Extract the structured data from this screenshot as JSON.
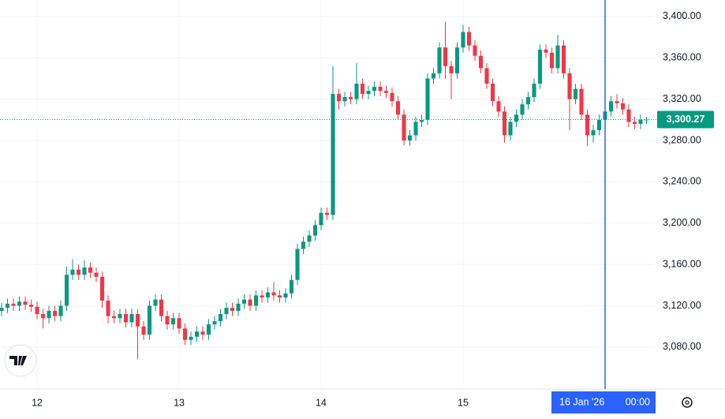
{
  "chart_data": {
    "type": "candlestick",
    "x": [
      -6,
      -5,
      -4,
      -3,
      -2,
      -1,
      0,
      1,
      2,
      3,
      4,
      5,
      6,
      7,
      8,
      9,
      10,
      11,
      12,
      13,
      14,
      15,
      16,
      17,
      18,
      19,
      20,
      21,
      22,
      23,
      24,
      25,
      26,
      27,
      28,
      29,
      30,
      31,
      32,
      33,
      34,
      35,
      36,
      37,
      38,
      39,
      40,
      41,
      42,
      43,
      44,
      45,
      46,
      47,
      48,
      49,
      50,
      51,
      52,
      53,
      54,
      55,
      56,
      57,
      58,
      59,
      60,
      61,
      62,
      63,
      64,
      65,
      66,
      67,
      68,
      69,
      70,
      71,
      72,
      73,
      74,
      75,
      76,
      77,
      78,
      79,
      80,
      81,
      82,
      83,
      84,
      85,
      86,
      87,
      88,
      89,
      90,
      91,
      92,
      93,
      94,
      95,
      96,
      97,
      98,
      99,
      100,
      101,
      102,
      103
    ],
    "open": [
      3115,
      3118,
      3122,
      3120,
      3124,
      3121,
      3119,
      3112,
      3108,
      3115,
      3110,
      3120,
      3150,
      3155,
      3150,
      3157,
      3152,
      3148,
      3125,
      3110,
      3108,
      3112,
      3104,
      3112,
      3100,
      3092,
      3120,
      3126,
      3110,
      3102,
      3108,
      3098,
      3087,
      3090,
      3095,
      3092,
      3102,
      3105,
      3112,
      3118,
      3115,
      3122,
      3126,
      3120,
      3130,
      3128,
      3133,
      3130,
      3128,
      3132,
      3145,
      3175,
      3182,
      3188,
      3198,
      3210,
      3208,
      3325,
      3318,
      3322,
      3320,
      3335,
      3325,
      3328,
      3332,
      3328,
      3326,
      3318,
      3305,
      3280,
      3285,
      3298,
      3300,
      3340,
      3345,
      3370,
      3352,
      3345,
      3370,
      3385,
      3372,
      3362,
      3350,
      3335,
      3318,
      3308,
      3285,
      3298,
      3305,
      3315,
      3322,
      3335,
      3368,
      3365,
      3350,
      3372,
      3345,
      3320,
      3330,
      3305,
      3285,
      3290,
      3300,
      3308,
      3318,
      3316,
      3310,
      3298,
      3296,
      3300
    ],
    "high": [
      3123,
      3127,
      3127,
      3129,
      3129,
      3126,
      3124,
      3117,
      3120,
      3120,
      3125,
      3158,
      3165,
      3160,
      3164,
      3162,
      3157,
      3153,
      3130,
      3115,
      3117,
      3117,
      3117,
      3117,
      3105,
      3125,
      3131,
      3131,
      3115,
      3113,
      3113,
      3103,
      3095,
      3100,
      3100,
      3107,
      3110,
      3117,
      3123,
      3123,
      3127,
      3131,
      3131,
      3135,
      3135,
      3138,
      3143,
      3135,
      3137,
      3150,
      3180,
      3187,
      3193,
      3203,
      3215,
      3215,
      3352,
      3330,
      3327,
      3327,
      3355,
      3340,
      3333,
      3337,
      3337,
      3333,
      3331,
      3323,
      3310,
      3290,
      3303,
      3305,
      3345,
      3350,
      3375,
      3395,
      3357,
      3375,
      3392,
      3390,
      3377,
      3367,
      3355,
      3340,
      3323,
      3313,
      3303,
      3310,
      3320,
      3327,
      3340,
      3373,
      3373,
      3370,
      3382,
      3377,
      3350,
      3335,
      3335,
      3310,
      3295,
      3305,
      3313,
      3323,
      3325,
      3321,
      3315,
      3303,
      3305,
      3303
    ],
    "low": [
      3110,
      3113,
      3115,
      3115,
      3116,
      3114,
      3107,
      3098,
      3103,
      3105,
      3105,
      3115,
      3145,
      3145,
      3145,
      3147,
      3143,
      3118,
      3103,
      3103,
      3103,
      3099,
      3099,
      3068,
      3087,
      3087,
      3115,
      3105,
      3097,
      3097,
      3093,
      3082,
      3082,
      3085,
      3087,
      3087,
      3097,
      3100,
      3107,
      3110,
      3110,
      3117,
      3115,
      3115,
      3123,
      3123,
      3125,
      3123,
      3123,
      3127,
      3140,
      3170,
      3177,
      3183,
      3193,
      3203,
      3203,
      3310,
      3313,
      3315,
      3315,
      3320,
      3320,
      3323,
      3323,
      3321,
      3313,
      3300,
      3275,
      3275,
      3280,
      3293,
      3295,
      3335,
      3340,
      3340,
      3320,
      3340,
      3365,
      3367,
      3357,
      3345,
      3330,
      3313,
      3303,
      3278,
      3280,
      3293,
      3300,
      3310,
      3317,
      3330,
      3360,
      3345,
      3345,
      3340,
      3290,
      3315,
      3300,
      3275,
      3278,
      3285,
      3295,
      3303,
      3311,
      3305,
      3293,
      3291,
      3291,
      3296
    ],
    "close": [
      3118,
      3122,
      3120,
      3124,
      3121,
      3119,
      3112,
      3108,
      3115,
      3110,
      3120,
      3150,
      3155,
      3150,
      3157,
      3152,
      3148,
      3125,
      3110,
      3108,
      3112,
      3104,
      3112,
      3100,
      3092,
      3120,
      3126,
      3110,
      3102,
      3108,
      3098,
      3087,
      3090,
      3095,
      3092,
      3102,
      3105,
      3112,
      3118,
      3115,
      3122,
      3126,
      3120,
      3130,
      3128,
      3133,
      3130,
      3128,
      3132,
      3145,
      3175,
      3182,
      3188,
      3198,
      3210,
      3208,
      3325,
      3318,
      3322,
      3320,
      3335,
      3325,
      3328,
      3332,
      3328,
      3326,
      3318,
      3305,
      3280,
      3285,
      3298,
      3300,
      3340,
      3345,
      3370,
      3352,
      3345,
      3370,
      3385,
      3372,
      3362,
      3350,
      3335,
      3318,
      3308,
      3285,
      3298,
      3305,
      3315,
      3322,
      3335,
      3368,
      3365,
      3350,
      3372,
      3345,
      3320,
      3330,
      3305,
      3285,
      3290,
      3300,
      3308,
      3318,
      3316,
      3310,
      3298,
      3296,
      3300,
      3300.27
    ],
    "up_color": "#089981",
    "down_color": "#f23645",
    "xlim": [
      -6.27,
      104.4
    ],
    "xticks": [
      {
        "value": 0,
        "label": "12"
      },
      {
        "value": 24,
        "label": "13"
      },
      {
        "value": 48,
        "label": "14"
      },
      {
        "value": 72,
        "label": "15"
      }
    ],
    "ylim": [
      3039.4,
      3416
    ],
    "yticks": [
      {
        "value": 3080,
        "label": "3,080.00"
      },
      {
        "value": 3120,
        "label": "3,120.00"
      },
      {
        "value": 3160,
        "label": "3,160.00"
      },
      {
        "value": 3200,
        "label": "3,200.00"
      },
      {
        "value": 3240,
        "label": "3,240.00"
      },
      {
        "value": 3280,
        "label": "3,280.00"
      },
      {
        "value": 3320,
        "label": "3,320.00"
      },
      {
        "value": 3360,
        "label": "3,360.00"
      },
      {
        "value": 3400,
        "label": "3,400.00"
      }
    ],
    "grid": true,
    "last_price": {
      "value": 3300.27,
      "label": "3,300.27",
      "color": "#089981"
    },
    "crosshair": {
      "x": 96,
      "date": "16 Jan '26",
      "time": "00:00",
      "color": "#2962ff"
    }
  }
}
